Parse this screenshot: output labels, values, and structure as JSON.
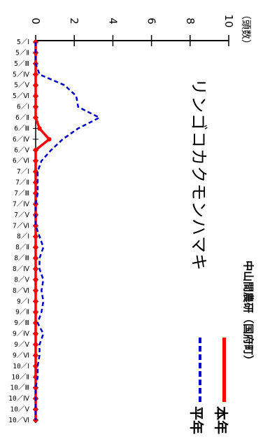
{
  "chart_data": {
    "type": "line",
    "title": "リンゴコカクモンハマキ",
    "unit_label": "（頭数）",
    "site_label": "中山間農研（国府町）",
    "ylim": [
      0,
      10
    ],
    "y_ticks": [
      "0",
      "2",
      "4",
      "6",
      "8",
      "10"
    ],
    "categories": [
      "5／Ⅰ",
      "5／Ⅱ",
      "5／Ⅲ",
      "5／Ⅳ",
      "5／Ⅴ",
      "5／Ⅵ",
      "6／Ⅰ",
      "6／Ⅱ",
      "6／Ⅲ",
      "6／Ⅳ",
      "6／Ⅴ",
      "6／Ⅵ",
      "7／Ⅰ",
      "7／Ⅱ",
      "7／Ⅲ",
      "7／Ⅳ",
      "7／Ⅴ",
      "7／Ⅵ",
      "8／Ⅰ",
      "8／Ⅱ",
      "8／Ⅲ",
      "8／Ⅳ",
      "8／Ⅴ",
      "8／Ⅵ",
      "9／Ⅰ",
      "9／Ⅱ",
      "9／Ⅲ",
      "9／Ⅳ",
      "9／Ⅴ",
      "9／Ⅵ",
      "10／Ⅰ",
      "10／Ⅱ",
      "10／Ⅲ",
      "10／Ⅳ",
      "10／Ⅴ",
      "10／Ⅵ"
    ],
    "series": [
      {
        "name": "本年",
        "color": "#ff0000",
        "style": "solid",
        "marker": "dot",
        "values": [
          0,
          0,
          0,
          0,
          0,
          0,
          0,
          0,
          0.2,
          0.7,
          0,
          0,
          0,
          0,
          0,
          0,
          0,
          0,
          0,
          0,
          0,
          0,
          0,
          0,
          0,
          0,
          0,
          0,
          0,
          0,
          0,
          0,
          0,
          0,
          0,
          0
        ]
      },
      {
        "name": "平年",
        "color": "#0000cc",
        "style": "dashed",
        "marker": "none",
        "values": [
          0,
          0,
          0,
          0.2,
          1.5,
          2.1,
          2.2,
          3.3,
          2.2,
          1.4,
          0.8,
          0.3,
          0.1,
          0.1,
          0.1,
          0,
          0,
          0,
          0.2,
          0.4,
          0.2,
          0.2,
          0.4,
          0.3,
          0.4,
          0.3,
          0.1,
          0.4,
          0.2,
          0.2,
          0.1,
          0.1,
          0,
          0,
          0,
          0
        ]
      }
    ]
  }
}
